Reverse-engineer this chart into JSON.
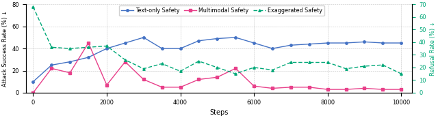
{
  "steps": [
    0,
    500,
    1000,
    1500,
    2000,
    2500,
    3000,
    3500,
    4000,
    4500,
    5000,
    5500,
    6000,
    6500,
    7000,
    7500,
    8000,
    8500,
    9000,
    9500,
    10000
  ],
  "text_only": [
    10,
    25,
    28,
    32,
    40,
    45,
    50,
    40,
    40,
    47,
    49,
    50,
    45,
    40,
    43,
    44,
    45,
    45,
    46,
    45,
    45
  ],
  "multimodal": [
    0,
    22,
    18,
    45,
    7,
    28,
    12,
    5,
    5,
    12,
    14,
    22,
    6,
    4,
    5,
    5,
    3,
    3,
    4,
    3,
    3
  ],
  "exaggerated": [
    68,
    36,
    35,
    36,
    37,
    26,
    19,
    23,
    17,
    25,
    20,
    15,
    20,
    18,
    24,
    24,
    24,
    19,
    21,
    22,
    15
  ],
  "text_only_color": "#4472c4",
  "multimodal_color": "#e8408a",
  "exaggerated_color": "#00a878",
  "left_ylabel": "Attack Success Rate (%) ↓",
  "right_ylabel": "Refusal Rate (%) ↓",
  "xlabel": "Steps",
  "legend_labels": [
    "Text-only Safety",
    "Multimodal Safety",
    "Exaggerated Safety"
  ],
  "ylim_left": [
    0,
    80
  ],
  "ylim_right": [
    0,
    70
  ],
  "yticks_left": [
    0,
    20,
    40,
    60,
    80
  ],
  "yticks_right": [
    0,
    10,
    20,
    30,
    40,
    50,
    60,
    70
  ],
  "xticks": [
    0,
    2000,
    4000,
    6000,
    8000,
    10000
  ],
  "bg_color": "#ffffff"
}
